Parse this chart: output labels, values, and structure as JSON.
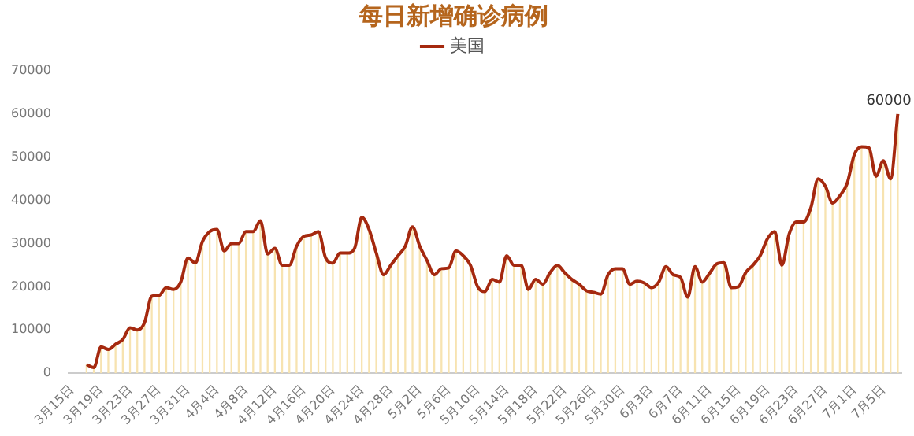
{
  "chart_data": {
    "type": "line",
    "title": "每日新增确诊病例",
    "legend": "top",
    "grid": false,
    "marker": "none",
    "ylim": [
      0,
      70000
    ],
    "yticks": [
      0,
      10000,
      20000,
      30000,
      40000,
      50000,
      60000,
      70000
    ],
    "categories": [
      "3月15日",
      null,
      null,
      null,
      "3月19日",
      null,
      null,
      null,
      "3月23日",
      null,
      null,
      null,
      "3月27日",
      null,
      null,
      null,
      "3月31日",
      null,
      null,
      null,
      "4月4日",
      null,
      null,
      null,
      "4月8日",
      null,
      null,
      null,
      "4月12日",
      null,
      null,
      null,
      "4月16日",
      null,
      null,
      null,
      "4月20日",
      null,
      null,
      null,
      "4月24日",
      null,
      null,
      null,
      "4月28日",
      null,
      null,
      null,
      "5月2日",
      null,
      null,
      null,
      "5月6日",
      null,
      null,
      null,
      "5月10日",
      null,
      null,
      null,
      "5月14日",
      null,
      null,
      null,
      "5月18日",
      null,
      null,
      null,
      "5月22日",
      null,
      null,
      null,
      "5月26日",
      null,
      null,
      null,
      "5月30日",
      null,
      null,
      null,
      "6月3日",
      null,
      null,
      null,
      "6月7日",
      null,
      null,
      null,
      "6月11日",
      null,
      null,
      null,
      "6月15日",
      null,
      null,
      null,
      "6月19日",
      null,
      null,
      null,
      "6月23日",
      null,
      null,
      null,
      "6月27日",
      null,
      null,
      null,
      "7月1日",
      null,
      null,
      null,
      "7月5日",
      null,
      null
    ],
    "series": [
      {
        "type": "bar",
        "color": "#f7e3b0",
        "values": [
          null,
          null,
          2000,
          1300,
          6100,
          5500,
          6700,
          7800,
          10500,
          10000,
          11700,
          17800,
          18000,
          19800,
          19400,
          21100,
          26700,
          25500,
          30500,
          32800,
          33300,
          28300,
          30000,
          30000,
          32800,
          32800,
          35300,
          27600,
          28900,
          25000,
          25000,
          29400,
          31700,
          32000,
          32800,
          26700,
          25500,
          27800,
          27800,
          28900,
          36100,
          33300,
          27800,
          22800,
          25000,
          27200,
          29400,
          33900,
          29400,
          26100,
          22800,
          24200,
          24400,
          28300,
          27200,
          25000,
          20000,
          18900,
          21700,
          21100,
          27200,
          25000,
          25000,
          19400,
          21700,
          20600,
          23300,
          25000,
          23300,
          21700,
          20600,
          19100,
          18700,
          18300,
          22800,
          24200,
          24200,
          20600,
          21300,
          20900,
          19800,
          21100,
          24700,
          22800,
          22200,
          17600,
          24700,
          21100,
          23100,
          25300,
          25600,
          19800,
          20000,
          23300,
          25000,
          27200,
          31100,
          32800,
          25000,
          32200,
          35000,
          35000,
          38300,
          45000,
          43300,
          39400,
          41100,
          43900,
          50600,
          52400,
          52200,
          45600,
          49200,
          45000,
          60000
        ]
      },
      {
        "name": "美国",
        "color": "#a5290f",
        "values": [
          null,
          null,
          2000,
          1300,
          6100,
          5500,
          6700,
          7800,
          10500,
          10000,
          11700,
          17800,
          18000,
          19800,
          19400,
          21100,
          26700,
          25500,
          30500,
          32800,
          33300,
          28300,
          30000,
          30000,
          32800,
          32800,
          35300,
          27600,
          28900,
          25000,
          25000,
          29400,
          31700,
          32000,
          32800,
          26700,
          25500,
          27800,
          27800,
          28900,
          36100,
          33300,
          27800,
          22800,
          25000,
          27200,
          29400,
          33900,
          29400,
          26100,
          22800,
          24200,
          24400,
          28300,
          27200,
          25000,
          20000,
          18900,
          21700,
          21100,
          27200,
          25000,
          25000,
          19400,
          21700,
          20600,
          23300,
          25000,
          23300,
          21700,
          20600,
          19100,
          18700,
          18300,
          22800,
          24200,
          24200,
          20600,
          21300,
          20900,
          19800,
          21100,
          24700,
          22800,
          22200,
          17600,
          24700,
          21100,
          23100,
          25300,
          25600,
          19800,
          20000,
          23300,
          25000,
          27200,
          31100,
          32800,
          25000,
          32200,
          35000,
          35000,
          38300,
          45000,
          43300,
          39400,
          41100,
          43900,
          50600,
          52400,
          52200,
          45600,
          49200,
          45000,
          60000
        ],
        "value_labels": [
          null,
          null,
          null,
          null,
          null,
          null,
          null,
          null,
          null,
          null,
          null,
          null,
          null,
          null,
          null,
          null,
          null,
          null,
          null,
          null,
          null,
          null,
          null,
          null,
          null,
          null,
          null,
          null,
          null,
          null,
          null,
          null,
          null,
          null,
          null,
          null,
          null,
          null,
          null,
          null,
          null,
          null,
          null,
          null,
          null,
          null,
          null,
          null,
          null,
          null,
          null,
          null,
          null,
          null,
          null,
          null,
          null,
          null,
          null,
          null,
          null,
          null,
          null,
          null,
          null,
          null,
          null,
          null,
          null,
          null,
          null,
          null,
          null,
          null,
          null,
          null,
          null,
          null,
          null,
          null,
          null,
          null,
          null,
          null,
          null,
          null,
          null,
          null,
          null,
          null,
          null,
          null,
          null,
          null,
          null,
          null,
          null,
          null,
          null,
          null,
          null,
          null,
          null,
          null,
          null,
          null,
          null,
          null,
          null,
          null,
          null,
          null,
          null,
          null,
          "60000"
        ]
      }
    ]
  }
}
